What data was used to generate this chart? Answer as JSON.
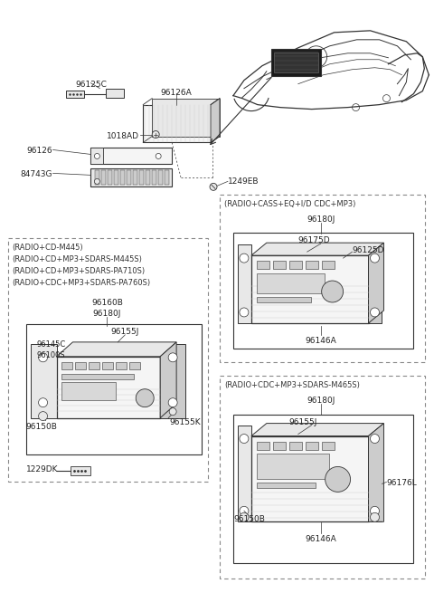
{
  "bg_color": "#ffffff",
  "lc": "#555555",
  "lc2": "#333333",
  "figsize": [
    4.8,
    6.55
  ],
  "dpi": 100,
  "box1_title_lines": [
    "(RADIO+CD-M445)",
    "(RADIO+CD+MP3+SDARS-M445S)",
    "(RADIO+CD+MP3+SDARS-PA710S)",
    "(RADIO+CDC+MP3+SDARS-PA760S)"
  ],
  "box2_title": "(RADIO+CASS+EQ+I/D CDC+MP3)",
  "box3_title": "(RADIO+CDC+MP3+SDARS-M465S)"
}
